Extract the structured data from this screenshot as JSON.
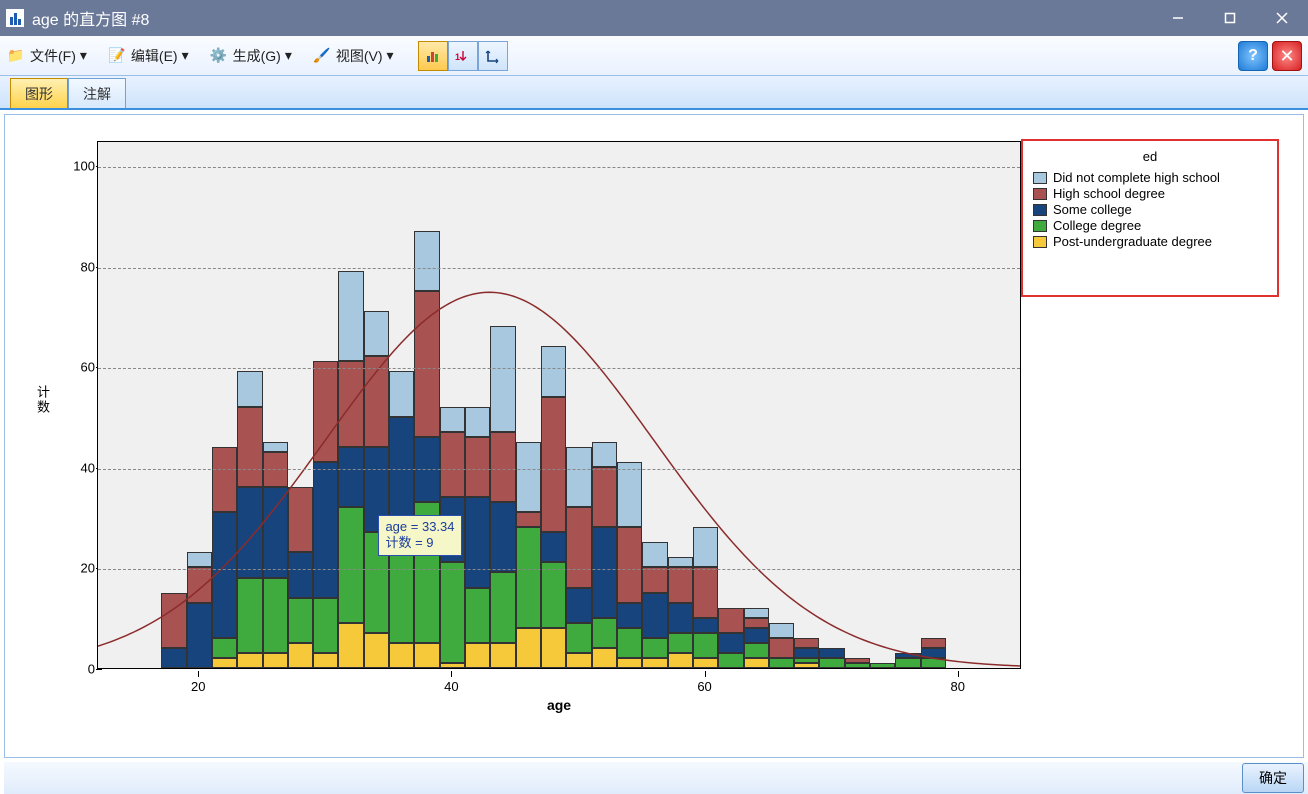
{
  "window": {
    "title": "age 的直方图 #8"
  },
  "menu": {
    "file": "文件(F)",
    "edit": "编辑(E)",
    "generate": "生成(G)",
    "view": "视图(V)"
  },
  "tabs": {
    "graph": "图形",
    "annotate": "注解"
  },
  "bottom": {
    "ok": "确定"
  },
  "chart": {
    "type": "stacked-histogram",
    "background_color": "#f0f0f0",
    "grid_color": "#888888",
    "axis_color": "#000000",
    "x_label": "age",
    "y_label": "计数",
    "x_min": 12,
    "x_max": 85,
    "x_ticks": [
      20,
      40,
      60,
      80
    ],
    "y_min": 0,
    "y_max": 105,
    "y_ticks": [
      0,
      20,
      40,
      60,
      80,
      100
    ],
    "bin_width": 2,
    "bar_border": "#333333",
    "series_colors": {
      "post_undergrad": "#f5c93a",
      "college": "#3fab3f",
      "some_college": "#17447d",
      "high_school": "#a95252",
      "no_hs": "#a7c8de"
    },
    "series_order": [
      "post_undergrad",
      "college",
      "some_college",
      "high_school",
      "no_hs"
    ],
    "bins": [
      {
        "x": 18,
        "post_undergrad": 0,
        "college": 0,
        "some_college": 4,
        "high_school": 11,
        "no_hs": 0
      },
      {
        "x": 20,
        "post_undergrad": 0,
        "college": 0,
        "some_college": 13,
        "high_school": 7,
        "no_hs": 3
      },
      {
        "x": 22,
        "post_undergrad": 2,
        "college": 4,
        "some_college": 25,
        "high_school": 13,
        "no_hs": 0
      },
      {
        "x": 24,
        "post_undergrad": 3,
        "college": 15,
        "some_college": 18,
        "high_school": 16,
        "no_hs": 7
      },
      {
        "x": 26,
        "post_undergrad": 3,
        "college": 15,
        "some_college": 18,
        "high_school": 7,
        "no_hs": 2
      },
      {
        "x": 28,
        "post_undergrad": 5,
        "college": 9,
        "some_college": 9,
        "high_school": 13,
        "no_hs": 0
      },
      {
        "x": 30,
        "post_undergrad": 3,
        "college": 11,
        "some_college": 27,
        "high_school": 20,
        "no_hs": 0
      },
      {
        "x": 32,
        "post_undergrad": 9,
        "college": 23,
        "some_college": 12,
        "high_school": 17,
        "no_hs": 18
      },
      {
        "x": 34,
        "post_undergrad": 7,
        "college": 20,
        "some_college": 17,
        "high_school": 18,
        "no_hs": 9
      },
      {
        "x": 36,
        "post_undergrad": 5,
        "college": 21,
        "some_college": 24,
        "high_school": 0,
        "no_hs": 9
      },
      {
        "x": 38,
        "post_undergrad": 5,
        "college": 28,
        "some_college": 13,
        "high_school": 29,
        "no_hs": 12
      },
      {
        "x": 40,
        "post_undergrad": 1,
        "college": 20,
        "some_college": 13,
        "high_school": 13,
        "no_hs": 5
      },
      {
        "x": 42,
        "post_undergrad": 5,
        "college": 11,
        "some_college": 18,
        "high_school": 12,
        "no_hs": 6
      },
      {
        "x": 44,
        "post_undergrad": 5,
        "college": 14,
        "some_college": 14,
        "high_school": 14,
        "no_hs": 21
      },
      {
        "x": 46,
        "post_undergrad": 8,
        "college": 20,
        "some_college": 0,
        "high_school": 3,
        "no_hs": 14
      },
      {
        "x": 48,
        "post_undergrad": 8,
        "college": 13,
        "some_college": 6,
        "high_school": 27,
        "no_hs": 10
      },
      {
        "x": 50,
        "post_undergrad": 3,
        "college": 6,
        "some_college": 7,
        "high_school": 16,
        "no_hs": 12
      },
      {
        "x": 52,
        "post_undergrad": 4,
        "college": 6,
        "some_college": 18,
        "high_school": 12,
        "no_hs": 5
      },
      {
        "x": 54,
        "post_undergrad": 2,
        "college": 6,
        "some_college": 5,
        "high_school": 15,
        "no_hs": 13
      },
      {
        "x": 56,
        "post_undergrad": 2,
        "college": 4,
        "some_college": 9,
        "high_school": 5,
        "no_hs": 5
      },
      {
        "x": 58,
        "post_undergrad": 3,
        "college": 4,
        "some_college": 6,
        "high_school": 7,
        "no_hs": 2
      },
      {
        "x": 60,
        "post_undergrad": 2,
        "college": 5,
        "some_college": 3,
        "high_school": 10,
        "no_hs": 8
      },
      {
        "x": 62,
        "post_undergrad": 0,
        "college": 3,
        "some_college": 4,
        "high_school": 5,
        "no_hs": 0
      },
      {
        "x": 64,
        "post_undergrad": 2,
        "college": 3,
        "some_college": 3,
        "high_school": 2,
        "no_hs": 2
      },
      {
        "x": 66,
        "post_undergrad": 0,
        "college": 2,
        "some_college": 0,
        "high_school": 4,
        "no_hs": 3
      },
      {
        "x": 68,
        "post_undergrad": 1,
        "college": 1,
        "some_college": 2,
        "high_school": 2,
        "no_hs": 0
      },
      {
        "x": 70,
        "post_undergrad": 0,
        "college": 2,
        "some_college": 2,
        "high_school": 0,
        "no_hs": 0
      },
      {
        "x": 72,
        "post_undergrad": 0,
        "college": 1,
        "some_college": 0,
        "high_school": 1,
        "no_hs": 0
      },
      {
        "x": 74,
        "post_undergrad": 0,
        "college": 1,
        "some_college": 0,
        "high_school": 0,
        "no_hs": 0
      },
      {
        "x": 76,
        "post_undergrad": 0,
        "college": 2,
        "some_college": 1,
        "high_school": 0,
        "no_hs": 0
      },
      {
        "x": 78,
        "post_undergrad": 0,
        "college": 2,
        "some_college": 2,
        "high_school": 2,
        "no_hs": 0
      }
    ],
    "curve": {
      "color": "#8b2b2b",
      "width": 1.5,
      "mu": 43,
      "sigma": 13,
      "peak": 75
    },
    "tooltip": {
      "line1": "age = 33.34",
      "line2": "计数 = 9",
      "left_bin_x": 34,
      "y_value": 28
    },
    "legend": {
      "title": "ed",
      "border_color": "#e03030",
      "items": [
        {
          "key": "no_hs",
          "label": "Did not complete high school"
        },
        {
          "key": "high_school",
          "label": "High school degree"
        },
        {
          "key": "some_college",
          "label": "Some college"
        },
        {
          "key": "college",
          "label": "College degree"
        },
        {
          "key": "post_undergrad",
          "label": "Post-undergraduate degree"
        }
      ]
    }
  }
}
